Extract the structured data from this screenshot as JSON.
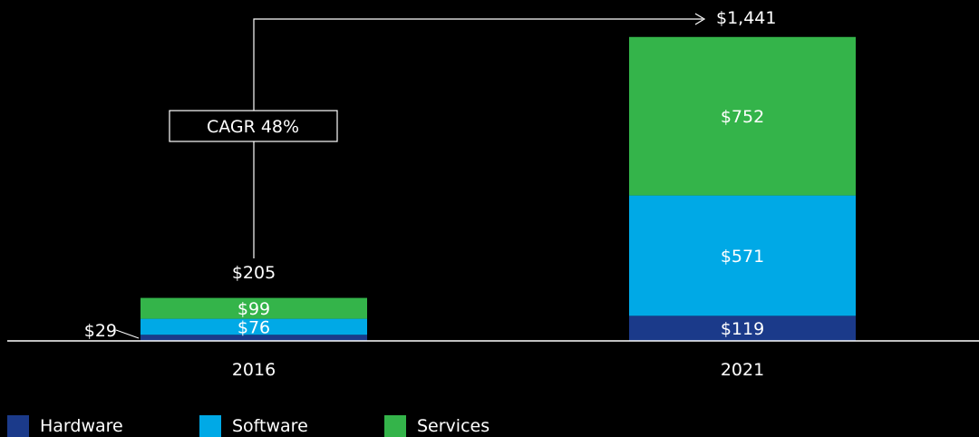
{
  "chart_data": {
    "type": "bar",
    "stacked": true,
    "categories": [
      "2016",
      "2021"
    ],
    "series": [
      {
        "name": "Hardware",
        "color": "#1b3a8a",
        "values": [
          29,
          119
        ],
        "labels": [
          "$29",
          "$119"
        ]
      },
      {
        "name": "Software",
        "color": "#00a9e6",
        "values": [
          76,
          571
        ],
        "labels": [
          "$76",
          "$571"
        ]
      },
      {
        "name": "Services",
        "color": "#34b44a",
        "values": [
          99,
          752
        ],
        "labels": [
          "$99",
          "$752"
        ]
      }
    ],
    "totals": [
      205,
      1441
    ],
    "total_labels": [
      "$205",
      "$1,441"
    ],
    "annotation": "CAGR 48%",
    "title": "",
    "xlabel": "",
    "ylabel": "",
    "ylim": [
      0,
      1441
    ],
    "grid": false,
    "legend_position": "bottom-left"
  }
}
